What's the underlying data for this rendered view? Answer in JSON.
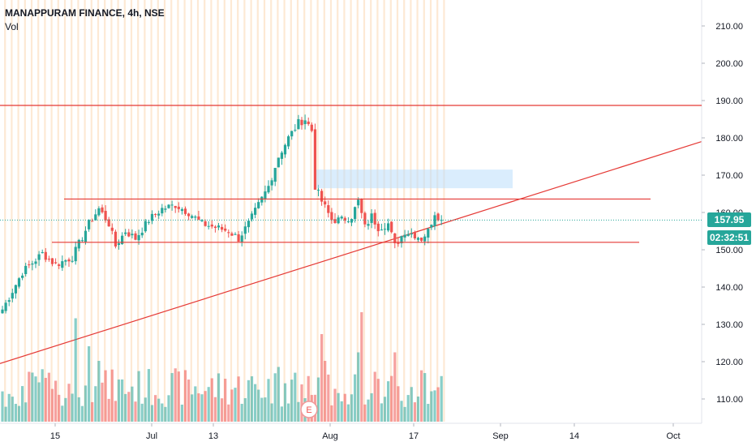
{
  "header": {
    "symbol": "MANAPPURAM FINANCE, 4h, NSE",
    "indicator": "Vol"
  },
  "price_tag": {
    "last_price": "157.95",
    "countdown": "02:32:51",
    "color": "#26a69a"
  },
  "colors": {
    "up": "#26a69a",
    "down": "#ef5350",
    "session_band": "#fde9d4",
    "line": "#e53935",
    "zone": "#bbdefb"
  },
  "earnings_marker": "E",
  "chart_data": {
    "type": "candlestick",
    "symbol": "MANAPPURAM FINANCE",
    "interval": "4h",
    "exchange": "NSE",
    "y_axis": {
      "min": 103,
      "max": 216,
      "ticks": [
        "110.00",
        "120.00",
        "130.00",
        "140.00",
        "150.00",
        "160.00",
        "170.00",
        "180.00",
        "190.00",
        "200.00",
        "210.00"
      ]
    },
    "x_axis": {
      "labels": [
        "15",
        "Jul",
        "13",
        "Aug",
        "17",
        "Sep",
        "14",
        "Oct"
      ]
    },
    "last_price": 157.95,
    "horizontal_levels": [
      188.7,
      163.6,
      152.0
    ],
    "trendline": {
      "from": {
        "x_label": "start",
        "y": 119.5
      },
      "to": {
        "x_label": "end",
        "y": 179
      }
    },
    "supply_zone": {
      "from": 171.5,
      "to": 166.5
    },
    "anchors": [
      {
        "i": 0,
        "c": 134
      },
      {
        "i": 6,
        "c": 144
      },
      {
        "i": 12,
        "c": 149
      },
      {
        "i": 16,
        "c": 146
      },
      {
        "i": 21,
        "c": 148
      },
      {
        "i": 26,
        "c": 157
      },
      {
        "i": 29,
        "c": 161
      },
      {
        "i": 32,
        "c": 157
      },
      {
        "i": 34,
        "c": 151
      },
      {
        "i": 37,
        "c": 155
      },
      {
        "i": 40,
        "c": 153
      },
      {
        "i": 44,
        "c": 158
      },
      {
        "i": 48,
        "c": 161
      },
      {
        "i": 52,
        "c": 162
      },
      {
        "i": 56,
        "c": 160
      },
      {
        "i": 60,
        "c": 157
      },
      {
        "i": 64,
        "c": 156
      },
      {
        "i": 68,
        "c": 155
      },
      {
        "i": 71,
        "c": 153
      },
      {
        "i": 74,
        "c": 157
      },
      {
        "i": 77,
        "c": 162
      },
      {
        "i": 80,
        "c": 167
      },
      {
        "i": 83,
        "c": 175
      },
      {
        "i": 86,
        "c": 180
      },
      {
        "i": 89,
        "c": 184
      },
      {
        "i": 91,
        "c": 185
      },
      {
        "i": 93,
        "c": 182
      },
      {
        "i": 94,
        "c": 167
      },
      {
        "i": 96,
        "c": 163
      },
      {
        "i": 99,
        "c": 158
      },
      {
        "i": 102,
        "c": 158
      },
      {
        "i": 105,
        "c": 159
      },
      {
        "i": 107,
        "c": 163
      },
      {
        "i": 109,
        "c": 156
      },
      {
        "i": 111,
        "c": 159
      },
      {
        "i": 113,
        "c": 156
      },
      {
        "i": 116,
        "c": 157
      },
      {
        "i": 118,
        "c": 151
      },
      {
        "i": 121,
        "c": 155
      },
      {
        "i": 124,
        "c": 154
      },
      {
        "i": 126,
        "c": 153
      },
      {
        "i": 128,
        "c": 155
      },
      {
        "i": 130,
        "c": 160
      },
      {
        "i": 132,
        "c": 158
      }
    ],
    "volume_spikes": [
      {
        "i": 22,
        "v": 0.85
      },
      {
        "i": 26,
        "v": 0.62
      },
      {
        "i": 29,
        "v": 0.5
      },
      {
        "i": 83,
        "v": 0.45
      },
      {
        "i": 96,
        "v": 0.72
      },
      {
        "i": 97,
        "v": 0.5
      },
      {
        "i": 107,
        "v": 0.57
      },
      {
        "i": 108,
        "v": 0.9
      },
      {
        "i": 118,
        "v": 0.57
      },
      {
        "i": 129,
        "v": 0.25
      }
    ]
  }
}
